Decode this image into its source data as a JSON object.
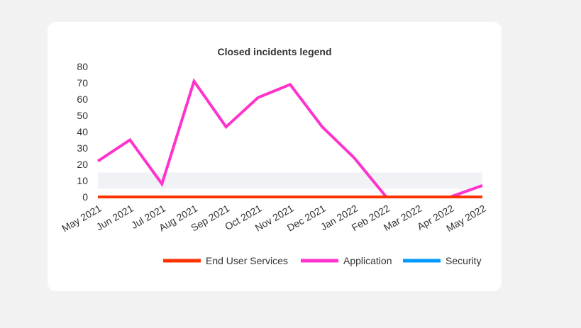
{
  "chart_data": {
    "type": "line",
    "title": "Closed incidents legend",
    "xlabel": "",
    "ylabel": "",
    "categories": [
      "May 2021",
      "Jun 2021",
      "Jul 2021",
      "Aug 2021",
      "Sep 2021",
      "Oct 2021",
      "Nov 2021",
      "Dec 2021",
      "Jan 2022",
      "Feb 2022",
      "Mar 2022",
      "Apr 2022",
      "May 2022"
    ],
    "ylim": [
      0,
      80
    ],
    "yticks": [
      "0",
      "10",
      "20",
      "30",
      "40",
      "50",
      "60",
      "70",
      "80"
    ],
    "grid": false,
    "legend_position": "bottom-right",
    "band": [
      5,
      15
    ],
    "band_color": "#f1f2f6",
    "series": [
      {
        "name": "End User Services",
        "color": "#ff3300",
        "values": [
          0,
          0,
          0,
          0,
          0,
          0,
          0,
          0,
          0,
          0,
          0,
          0,
          0
        ]
      },
      {
        "name": "Application",
        "color": "#ff33cc",
        "values": [
          22,
          35,
          8,
          71,
          43,
          61,
          69,
          43,
          24,
          0,
          0,
          0,
          7
        ]
      },
      {
        "name": "Security",
        "color": "#0099ff",
        "values": [
          0,
          0,
          0,
          0,
          0,
          0,
          0,
          0,
          0,
          0,
          0,
          0,
          0
        ]
      }
    ]
  }
}
